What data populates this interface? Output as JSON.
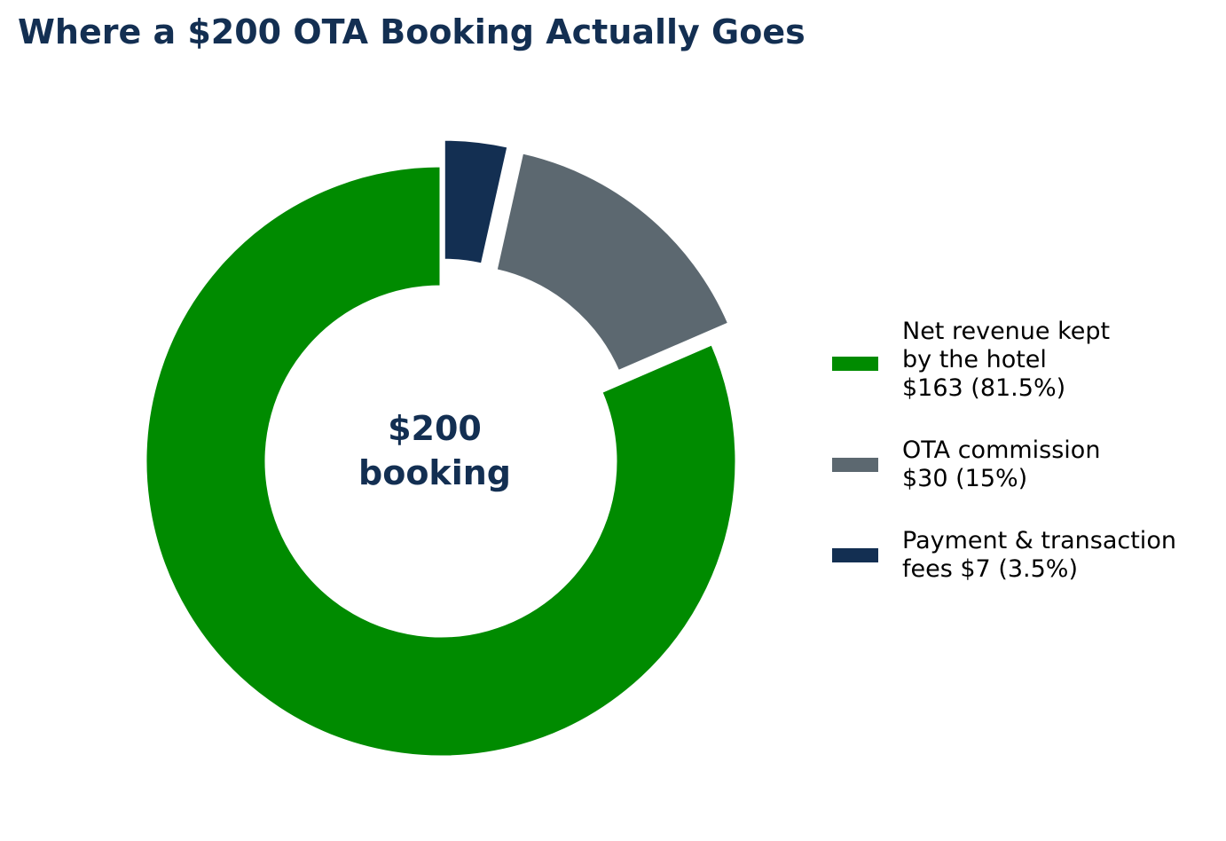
{
  "chart_data": {
    "type": "pie",
    "title": "Where a $200 OTA Booking Actually Goes",
    "center_label": [
      "$200",
      "booking"
    ],
    "total": 200,
    "slices": [
      {
        "label": "Net revenue kept\nby the hotel\n$163 (81.5%)",
        "value": 163,
        "percent": 81.5,
        "color": "#008b00",
        "exploded": false
      },
      {
        "label": "OTA commission\n$30 (15%)",
        "value": 30,
        "percent": 15,
        "color": "#5c6870",
        "exploded": true
      },
      {
        "label": "Payment & transaction\nfees $7 (3.5%)",
        "value": 7,
        "percent": 3.5,
        "color": "#132f52",
        "exploded": true
      }
    ],
    "legend_position": "right"
  }
}
